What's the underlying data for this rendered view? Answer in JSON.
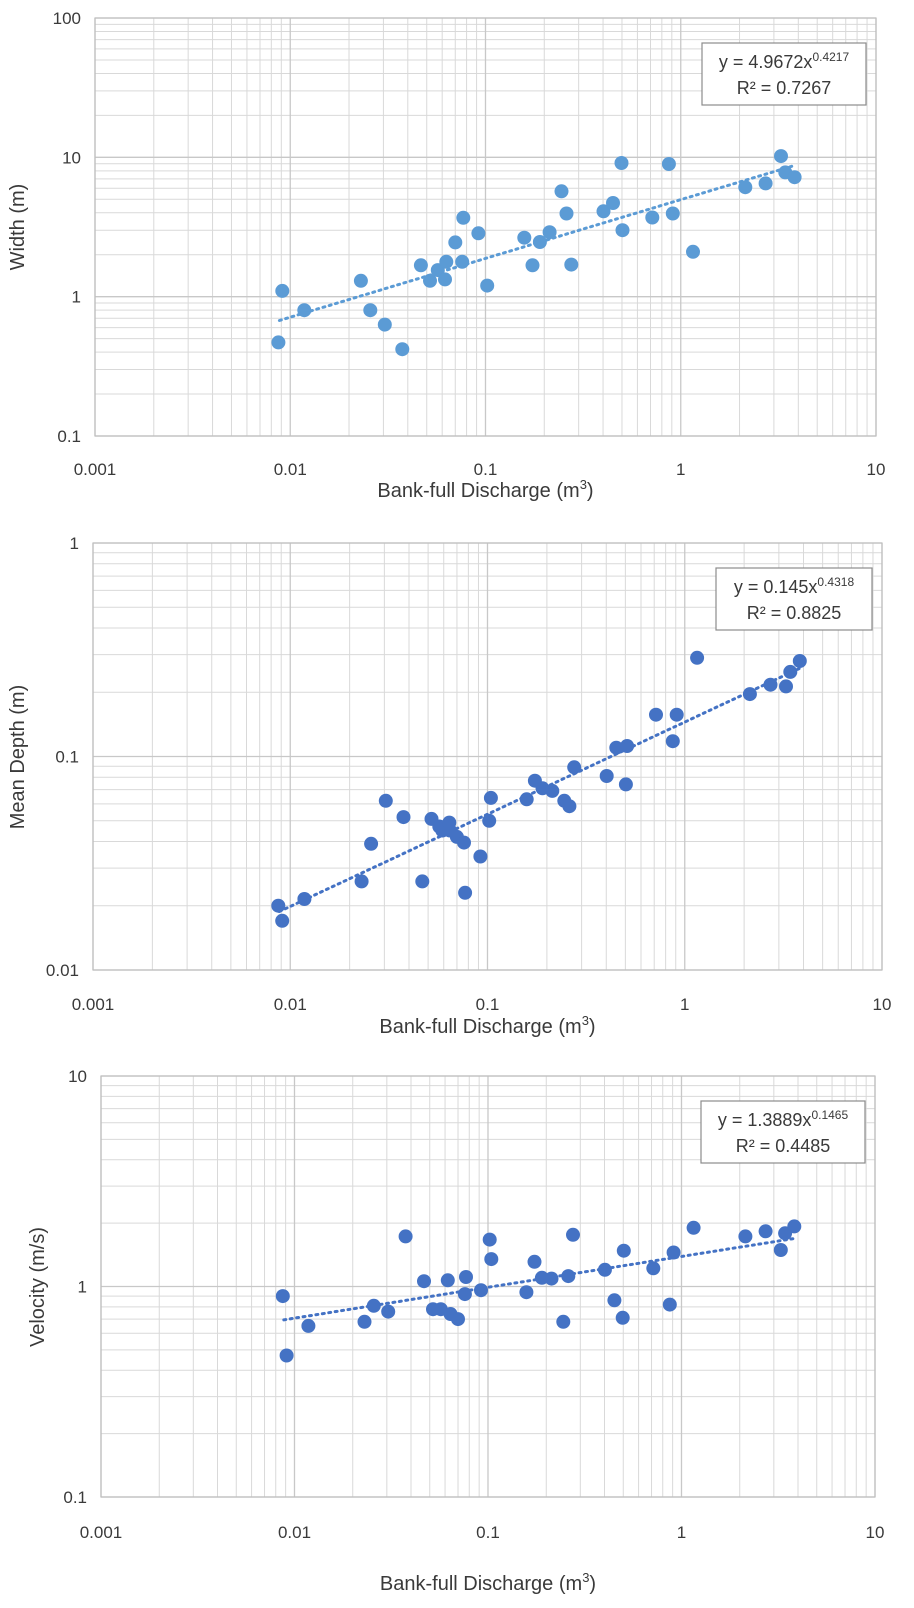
{
  "chart_data": [
    {
      "type": "scatter",
      "xscale": "log",
      "yscale": "log",
      "xlim": [
        0.001,
        10
      ],
      "ylim": [
        0.1,
        100
      ],
      "xticks": [
        "0.001",
        "0.01",
        "0.1",
        "1",
        "10"
      ],
      "yticks": [
        "100",
        "10",
        "1",
        "0.1"
      ],
      "xlabel": "Bank-full Discharge (m",
      "xlabel_sup": "3",
      "xlabel_end": ")",
      "ylabel": "Width (m)",
      "grid": true,
      "marker_color": "#5B9BD5",
      "trendline": {
        "type": "power",
        "a": 4.9672,
        "b": 0.4217,
        "x_range": [
          0.0088,
          3.8
        ],
        "equation_prefix": "y = 4.9672x",
        "equation_exponent": "0.4217",
        "r2_text": "R² = 0.7267",
        "position": "top-right"
      },
      "points": [
        [
          0.0087,
          0.47
        ],
        [
          0.0091,
          1.1
        ],
        [
          0.0118,
          0.8
        ],
        [
          0.023,
          1.3
        ],
        [
          0.0257,
          0.8
        ],
        [
          0.0305,
          0.63
        ],
        [
          0.0375,
          0.42
        ],
        [
          0.0467,
          1.68
        ],
        [
          0.052,
          1.3
        ],
        [
          0.057,
          1.55
        ],
        [
          0.062,
          1.33
        ],
        [
          0.063,
          1.78
        ],
        [
          0.07,
          2.45
        ],
        [
          0.076,
          1.78
        ],
        [
          0.077,
          3.68
        ],
        [
          0.092,
          2.85
        ],
        [
          0.102,
          1.2
        ],
        [
          0.158,
          2.65
        ],
        [
          0.174,
          1.68
        ],
        [
          0.19,
          2.47
        ],
        [
          0.213,
          2.9
        ],
        [
          0.245,
          5.7
        ],
        [
          0.26,
          3.95
        ],
        [
          0.275,
          1.7
        ],
        [
          0.402,
          4.1
        ],
        [
          0.45,
          4.7
        ],
        [
          0.497,
          9.1
        ],
        [
          0.503,
          3.0
        ],
        [
          0.715,
          3.7
        ],
        [
          0.87,
          8.95
        ],
        [
          0.91,
          3.95
        ],
        [
          1.155,
          2.1
        ],
        [
          2.14,
          6.1
        ],
        [
          2.72,
          6.5
        ],
        [
          3.26,
          10.2
        ],
        [
          3.43,
          7.8
        ],
        [
          3.83,
          7.2
        ]
      ]
    },
    {
      "type": "scatter",
      "xscale": "log",
      "yscale": "log",
      "xlim": [
        0.001,
        10
      ],
      "ylim": [
        0.01,
        1
      ],
      "xticks": [
        "0.001",
        "0.01",
        "0.1",
        "1",
        "10"
      ],
      "yticks": [
        "1",
        "0.1",
        "0.01"
      ],
      "xlabel": "Bank-full Discharge (m",
      "xlabel_sup": "3",
      "xlabel_end": ")",
      "ylabel": "Mean Depth (m)",
      "grid": true,
      "marker_color": "#4472C4",
      "trendline": {
        "type": "power",
        "a": 0.145,
        "b": 0.4318,
        "x_range": [
          0.0088,
          3.8
        ],
        "equation_prefix": "y = 0.145x",
        "equation_exponent": "0.4318",
        "r2_text": "R² = 0.8825",
        "position": "top-right"
      },
      "points": [
        [
          0.0087,
          0.02
        ],
        [
          0.0091,
          0.017
        ],
        [
          0.0118,
          0.0215
        ],
        [
          0.023,
          0.026
        ],
        [
          0.0257,
          0.039
        ],
        [
          0.0305,
          0.062
        ],
        [
          0.0375,
          0.052
        ],
        [
          0.0467,
          0.026
        ],
        [
          0.052,
          0.051
        ],
        [
          0.057,
          0.047
        ],
        [
          0.059,
          0.045
        ],
        [
          0.064,
          0.049
        ],
        [
          0.0645,
          0.045
        ],
        [
          0.07,
          0.042
        ],
        [
          0.076,
          0.0395
        ],
        [
          0.077,
          0.023
        ],
        [
          0.092,
          0.034
        ],
        [
          0.102,
          0.05
        ],
        [
          0.104,
          0.064
        ],
        [
          0.158,
          0.063
        ],
        [
          0.174,
          0.077
        ],
        [
          0.19,
          0.071
        ],
        [
          0.213,
          0.069
        ],
        [
          0.245,
          0.062
        ],
        [
          0.26,
          0.0585
        ],
        [
          0.275,
          0.089
        ],
        [
          0.402,
          0.081
        ],
        [
          0.45,
          0.11
        ],
        [
          0.503,
          0.074
        ],
        [
          0.51,
          0.112
        ],
        [
          0.715,
          0.157
        ],
        [
          0.87,
          0.118
        ],
        [
          0.91,
          0.157
        ],
        [
          1.155,
          0.29
        ],
        [
          2.14,
          0.196
        ],
        [
          2.72,
          0.217
        ],
        [
          3.26,
          0.213
        ],
        [
          3.43,
          0.249
        ],
        [
          3.83,
          0.28
        ]
      ]
    },
    {
      "type": "scatter",
      "xscale": "log",
      "yscale": "log",
      "xlim": [
        0.001,
        10
      ],
      "ylim": [
        0.1,
        10
      ],
      "xticks": [
        "0.001",
        "0.01",
        "0.1",
        "1",
        "10"
      ],
      "yticks": [
        "10",
        "1",
        "0.1"
      ],
      "xlabel": "Bank-full Discharge (m",
      "xlabel_sup": "3",
      "xlabel_end": ")",
      "ylabel": "Velocity (m/s)",
      "grid": true,
      "marker_color": "#4472C4",
      "trendline": {
        "type": "power",
        "a": 1.3889,
        "b": 0.1465,
        "x_range": [
          0.0088,
          3.8
        ],
        "equation_prefix": "y = 1.3889x",
        "equation_exponent": "0.1465",
        "r2_text": "R² = 0.4485",
        "position": "top-right"
      },
      "points": [
        [
          0.0087,
          0.9
        ],
        [
          0.0091,
          0.47
        ],
        [
          0.0118,
          0.65
        ],
        [
          0.023,
          0.68
        ],
        [
          0.0257,
          0.81
        ],
        [
          0.0305,
          0.76
        ],
        [
          0.0375,
          1.73
        ],
        [
          0.0467,
          1.06
        ],
        [
          0.052,
          0.78
        ],
        [
          0.057,
          0.78
        ],
        [
          0.062,
          1.07
        ],
        [
          0.064,
          0.74
        ],
        [
          0.07,
          0.7
        ],
        [
          0.076,
          0.92
        ],
        [
          0.077,
          1.11
        ],
        [
          0.092,
          0.96
        ],
        [
          0.102,
          1.67
        ],
        [
          0.104,
          1.35
        ],
        [
          0.158,
          0.94
        ],
        [
          0.174,
          1.31
        ],
        [
          0.19,
          1.1
        ],
        [
          0.213,
          1.09
        ],
        [
          0.245,
          0.68
        ],
        [
          0.26,
          1.12
        ],
        [
          0.275,
          1.76
        ],
        [
          0.402,
          1.2
        ],
        [
          0.45,
          0.86
        ],
        [
          0.497,
          0.71
        ],
        [
          0.503,
          1.48
        ],
        [
          0.715,
          1.22
        ],
        [
          0.87,
          0.82
        ],
        [
          0.91,
          1.45
        ],
        [
          1.155,
          1.9
        ],
        [
          2.14,
          1.73
        ],
        [
          2.72,
          1.83
        ],
        [
          3.26,
          1.49
        ],
        [
          3.43,
          1.79
        ],
        [
          3.83,
          1.93
        ]
      ]
    }
  ]
}
